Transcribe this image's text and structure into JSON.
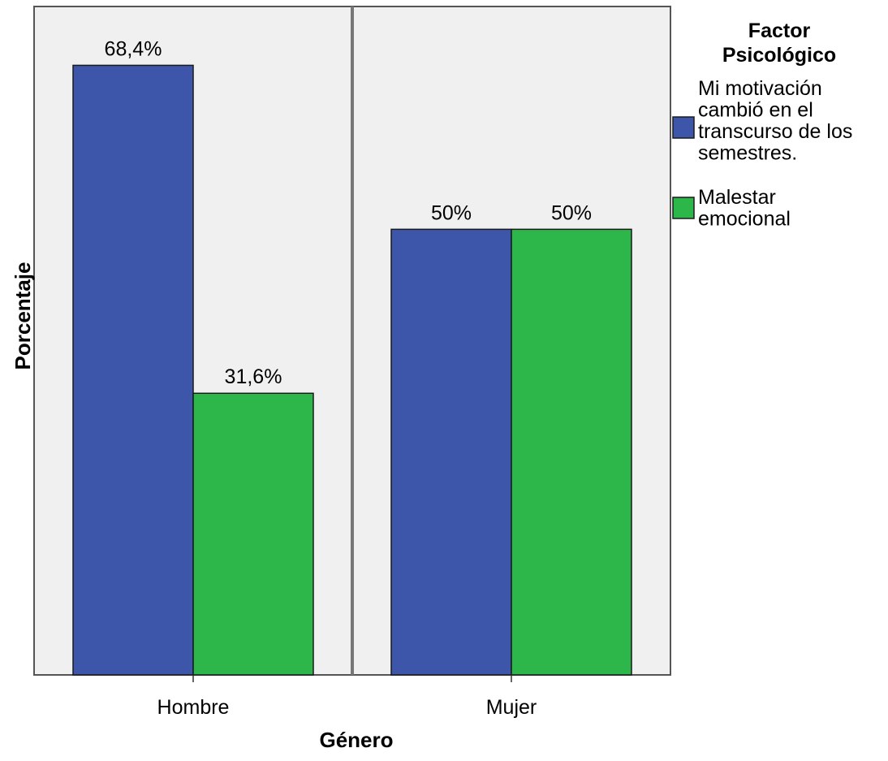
{
  "chart_data": {
    "type": "bar",
    "categories": [
      "Hombre",
      "Mujer"
    ],
    "series": [
      {
        "name": "Mi motivación cambió en el transcurso de los semestres.",
        "values": [
          68.4,
          50
        ],
        "labels": [
          "68,4%",
          "50%"
        ],
        "color": "#3d56aa"
      },
      {
        "name": "Malestar emocional",
        "values": [
          31.6,
          50
        ],
        "labels": [
          "31,6%",
          "50%"
        ],
        "color": "#2db74a"
      }
    ],
    "xlabel": "Género",
    "ylabel": "Porcentaje",
    "ylim": [
      0,
      75
    ],
    "grid": false,
    "legend": {
      "title": "Factor Psicológico",
      "title_lines": [
        "Factor",
        "Psicológico"
      ],
      "placement": "right",
      "entries": [
        {
          "lines": [
            "Mi motivación",
            "cambió en el",
            "transcurso de los",
            "semestres."
          ]
        },
        {
          "lines": [
            "Malestar",
            "emocional"
          ]
        }
      ]
    },
    "colors": {
      "panel_background": "#f0f0f0",
      "frame": "#555555"
    }
  }
}
